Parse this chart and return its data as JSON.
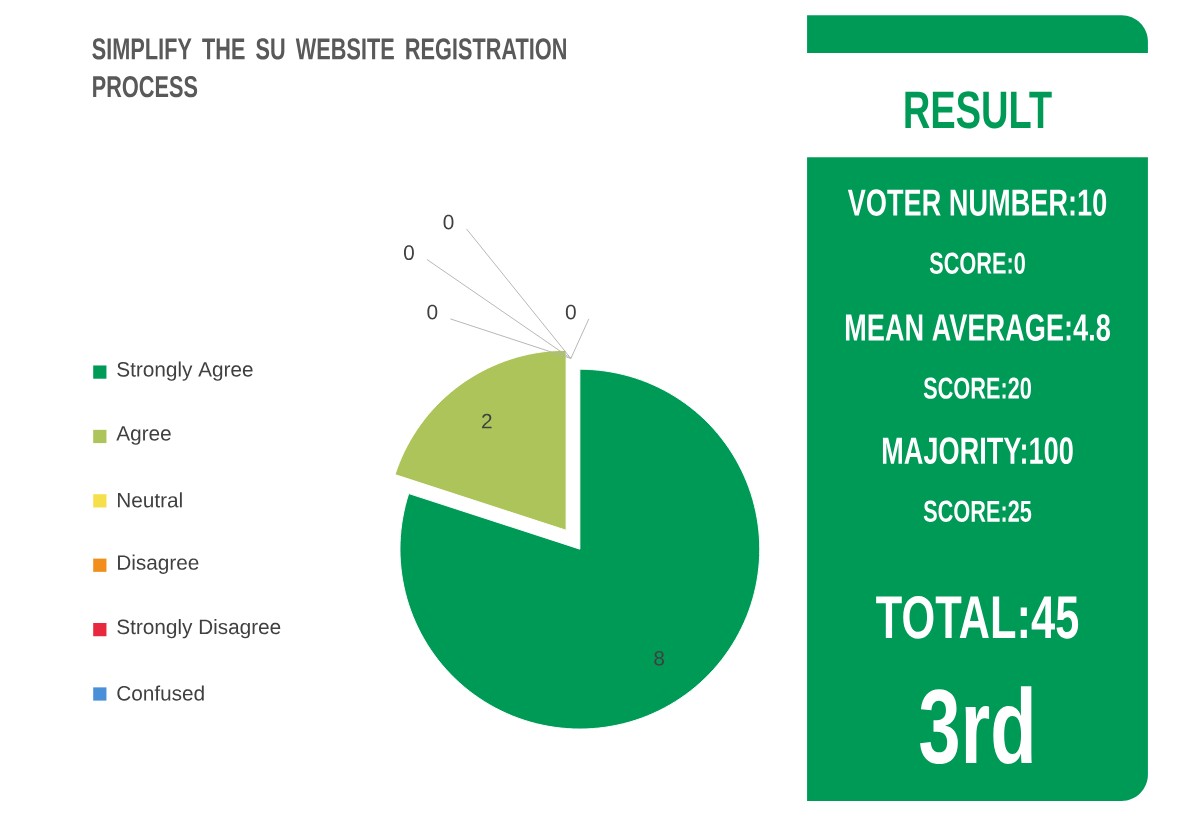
{
  "chart_data": [
    {
      "type": "pie",
      "title": "SIMPLIFY THE SU WEBSITE REGISTRATION PROCESS",
      "categories": [
        "Strongly Agree",
        "Agree",
        "Neutral",
        "Disagree",
        "Strongly Disagree",
        "Confused"
      ],
      "values": [
        8,
        2,
        0,
        0,
        0,
        0
      ],
      "colors": [
        "#009a57",
        "#adc45a",
        "#f5e04c",
        "#f28e1c",
        "#e8283c",
        "#4a90d9"
      ],
      "value_labels": [
        "8",
        "2",
        "0",
        "0",
        "0",
        "0"
      ],
      "legend": "left"
    },
    {
      "type": "other",
      "title": "RESULT",
      "annotations": [
        "VOTER NUMBER:10",
        "SCORE:0",
        "MEAN AVERAGE:4.8",
        "SCORE:20",
        "MAJORITY:100",
        "SCORE:25",
        "TOTAL:45",
        "3rd"
      ]
    }
  ]
}
